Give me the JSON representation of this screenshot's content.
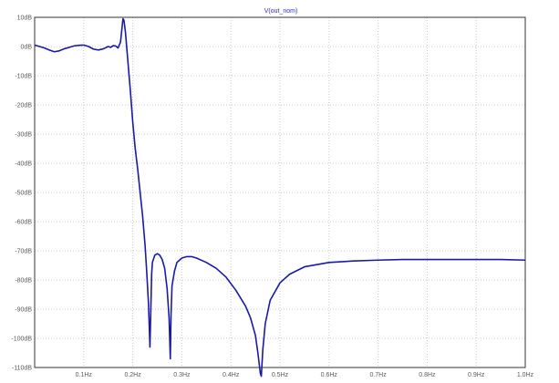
{
  "chart_data": {
    "type": "line",
    "title": "",
    "xlabel": "",
    "ylabel": "",
    "xlim": [
      0,
      1.0
    ],
    "ylim": [
      -110,
      10
    ],
    "grid": true,
    "legend": "top-center",
    "colors": {
      "series": "#1a1aa6",
      "frame": "#333333",
      "grid": "#c8c8c8",
      "text": "#5a5a5a",
      "title": "#2b2bd0"
    },
    "x_ticks": [
      {
        "value": 0.1,
        "label": "0.1Hz"
      },
      {
        "value": 0.2,
        "label": "0.2Hz"
      },
      {
        "value": 0.3,
        "label": "0.3Hz"
      },
      {
        "value": 0.4,
        "label": "0.4Hz"
      },
      {
        "value": 0.5,
        "label": "0.5Hz"
      },
      {
        "value": 0.6,
        "label": "0.6Hz"
      },
      {
        "value": 0.7,
        "label": "0.7Hz"
      },
      {
        "value": 0.8,
        "label": "0.8Hz"
      },
      {
        "value": 0.9,
        "label": "0.9Hz"
      },
      {
        "value": 1.0,
        "label": "1.0Hz"
      }
    ],
    "y_ticks": [
      {
        "value": 10,
        "label": "10dB"
      },
      {
        "value": 0,
        "label": "0dB"
      },
      {
        "value": -10,
        "label": "-10dB"
      },
      {
        "value": -20,
        "label": "-20dB"
      },
      {
        "value": -30,
        "label": "-30dB"
      },
      {
        "value": -40,
        "label": "-40dB"
      },
      {
        "value": -50,
        "label": "-50dB"
      },
      {
        "value": -60,
        "label": "-60dB"
      },
      {
        "value": -70,
        "label": "-70dB"
      },
      {
        "value": -80,
        "label": "-80dB"
      },
      {
        "value": -90,
        "label": "-90dB"
      },
      {
        "value": -100,
        "label": "-100dB"
      },
      {
        "value": -110,
        "label": "-110dB"
      }
    ],
    "series": [
      {
        "name": "V(out_nom)",
        "x": [
          0.0,
          0.01,
          0.02,
          0.03,
          0.04,
          0.05,
          0.06,
          0.07,
          0.08,
          0.09,
          0.1,
          0.11,
          0.12,
          0.13,
          0.14,
          0.15,
          0.155,
          0.16,
          0.165,
          0.17,
          0.175,
          0.18,
          0.182,
          0.185,
          0.19,
          0.195,
          0.2,
          0.205,
          0.21,
          0.215,
          0.22,
          0.225,
          0.228,
          0.232,
          0.235,
          0.2385,
          0.24,
          0.245,
          0.25,
          0.255,
          0.26,
          0.265,
          0.27,
          0.274,
          0.2765,
          0.278,
          0.28,
          0.285,
          0.29,
          0.3,
          0.31,
          0.32,
          0.33,
          0.35,
          0.37,
          0.39,
          0.41,
          0.43,
          0.44,
          0.45,
          0.455,
          0.46,
          0.462,
          0.465,
          0.47,
          0.48,
          0.5,
          0.52,
          0.55,
          0.6,
          0.65,
          0.7,
          0.75,
          0.8,
          0.85,
          0.9,
          0.95,
          1.0
        ],
        "y": [
          0.5,
          0.0,
          -0.5,
          -1.2,
          -1.8,
          -1.5,
          -0.8,
          -0.3,
          0.2,
          0.4,
          0.5,
          0.0,
          -0.9,
          -1.2,
          -0.8,
          0.0,
          -0.3,
          0.3,
          0.2,
          -0.5,
          1.5,
          9.5,
          9.0,
          5.0,
          -5.0,
          -15.0,
          -26.0,
          -35.0,
          -42.0,
          -50.0,
          -58.0,
          -68.0,
          -76.0,
          -88.0,
          -103.0,
          -78.0,
          -74.0,
          -71.5,
          -71.0,
          -71.5,
          -73.0,
          -76.0,
          -83.0,
          -93.0,
          -107.0,
          -92.0,
          -82.0,
          -77.0,
          -74.0,
          -72.5,
          -72.0,
          -72.0,
          -72.5,
          -74.0,
          -76.0,
          -79.0,
          -83.5,
          -89.0,
          -93.0,
          -99.0,
          -105.0,
          -112.0,
          -113.0,
          -104.0,
          -95.0,
          -87.0,
          -81.0,
          -78.0,
          -75.5,
          -74.0,
          -73.5,
          -73.2,
          -73.0,
          -73.0,
          -73.0,
          -73.0,
          -73.0,
          -73.2
        ]
      }
    ]
  }
}
